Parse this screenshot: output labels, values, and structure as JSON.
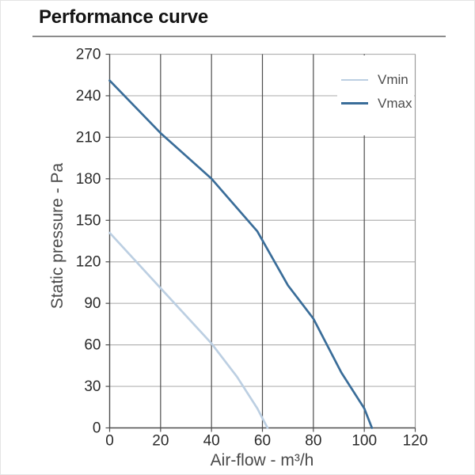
{
  "page": {
    "title": "Performance curve"
  },
  "colors": {
    "background": "#ffffff",
    "title_text": "#141414",
    "title_rule": "#8c8c8c",
    "axis": "#4d4d4d",
    "vgrid": "#4d4d4d",
    "hgrid": "#b3b3b3",
    "plot_border": "#9c9c9c",
    "tick_text": "#2b2b2b",
    "axis_label_text": "#4a4a4a",
    "legend_text": "#4d4d4d",
    "vmin_line": "#bccfe2",
    "vmax_line": "#3a6d99"
  },
  "chart_data": {
    "type": "line",
    "title": "Performance curve",
    "xlabel": "Air-flow - m³/h",
    "ylabel": "Static pressure - Pa",
    "xlim": [
      0,
      120
    ],
    "ylim": [
      0,
      270
    ],
    "xticks": [
      0,
      20,
      40,
      60,
      80,
      100,
      120
    ],
    "yticks": [
      0,
      30,
      60,
      90,
      120,
      150,
      180,
      210,
      240,
      270
    ],
    "grid": true,
    "legend_position": "top-right",
    "series": [
      {
        "name": "Vmin",
        "color": "#bccfe2",
        "points": [
          [
            0,
            141
          ],
          [
            20,
            101
          ],
          [
            40,
            61
          ],
          [
            50,
            37
          ],
          [
            58,
            14
          ],
          [
            62,
            0
          ]
        ]
      },
      {
        "name": "Vmax",
        "color": "#3a6d99",
        "points": [
          [
            0,
            251
          ],
          [
            20,
            213
          ],
          [
            40,
            180
          ],
          [
            58,
            142
          ],
          [
            70,
            103
          ],
          [
            80,
            79
          ],
          [
            91,
            40
          ],
          [
            100,
            14
          ],
          [
            103,
            0
          ]
        ]
      }
    ]
  }
}
